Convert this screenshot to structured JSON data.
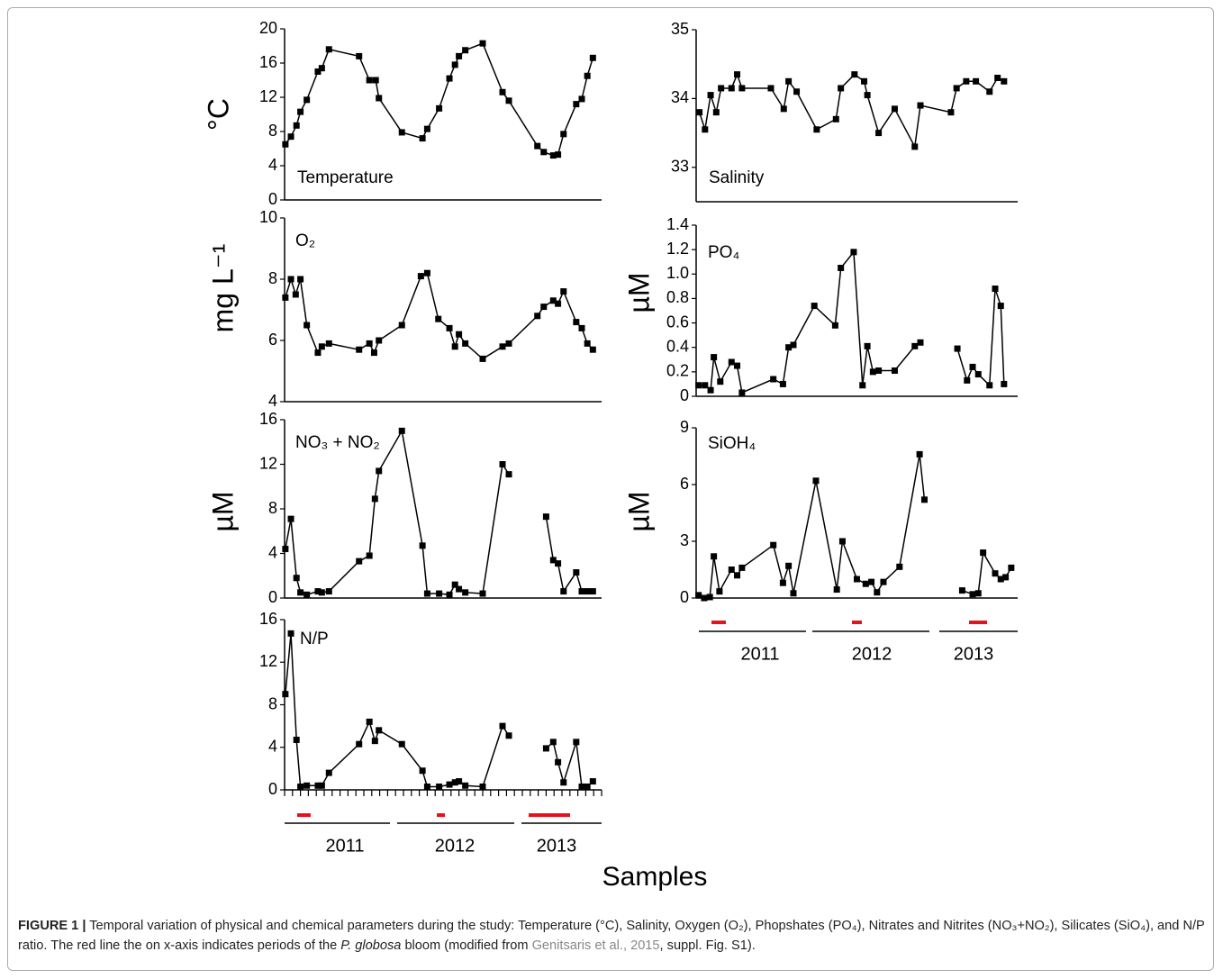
{
  "chart_data": [
    {
      "type": "line",
      "label": "Temperature",
      "ylabel": "°C",
      "color": "#000000",
      "x": [
        0.1,
        0.8,
        1.5,
        2.0,
        2.8,
        4.2,
        4.7,
        5.6,
        9.4,
        10.7,
        11.5,
        11.9,
        14.8,
        17.4,
        18.0,
        19.5,
        20.8,
        21.5,
        22.0,
        22.8,
        25.0,
        27.5,
        28.3,
        31.9,
        32.7,
        33.9,
        34.5,
        35.2,
        36.8,
        37.5,
        38.2,
        38.9
      ],
      "values": [
        6.5,
        7.4,
        8.7,
        10.3,
        11.7,
        15.0,
        15.4,
        17.6,
        16.8,
        14.0,
        14.0,
        11.9,
        7.9,
        7.2,
        8.3,
        10.7,
        14.2,
        15.8,
        16.8,
        17.5,
        18.3,
        12.6,
        11.6,
        6.3,
        5.6,
        5.2,
        5.3,
        7.7,
        11.2,
        11.8,
        14.5,
        16.6
      ],
      "xlim": [
        0,
        40
      ],
      "ylim": [
        0,
        20
      ],
      "yticks": [
        0,
        4,
        8,
        12,
        16,
        20
      ]
    },
    {
      "type": "line",
      "label": "Salinity",
      "color": "#000000",
      "x": [
        0.4,
        1.1,
        1.8,
        2.5,
        3.1,
        4.4,
        5.1,
        5.7,
        9.3,
        10.9,
        11.5,
        12.5,
        15.0,
        17.4,
        18.0,
        19.7,
        20.9,
        21.3,
        22.7,
        24.7,
        27.2,
        27.9,
        31.7,
        32.4,
        33.6,
        34.8,
        36.5,
        37.5,
        38.3
      ],
      "values": [
        33.8,
        33.55,
        34.05,
        33.8,
        34.15,
        34.15,
        34.35,
        34.15,
        34.15,
        33.85,
        34.25,
        34.1,
        33.55,
        33.7,
        34.15,
        34.35,
        34.25,
        34.05,
        33.5,
        33.85,
        33.3,
        33.9,
        33.8,
        34.15,
        34.25,
        34.25,
        34.1,
        34.3,
        34.25
      ],
      "xlim": [
        0,
        40
      ],
      "ylim": [
        32.5,
        35
      ],
      "yticks": [
        33,
        34,
        35
      ]
    },
    {
      "type": "line",
      "label": "O₂",
      "ylabel": "mg L⁻¹",
      "color": "#000000",
      "x": [
        0.1,
        0.8,
        1.4,
        2.0,
        2.8,
        4.2,
        4.7,
        5.6,
        9.4,
        10.7,
        11.3,
        11.9,
        14.8,
        17.2,
        18.0,
        19.4,
        20.8,
        21.5,
        22.0,
        22.8,
        25.0,
        27.5,
        28.3,
        31.9,
        32.7,
        33.9,
        34.5,
        35.2,
        36.8,
        37.5,
        38.2,
        38.9
      ],
      "values": [
        7.4,
        8.0,
        7.5,
        8.0,
        6.5,
        5.6,
        5.8,
        5.9,
        5.7,
        5.9,
        5.6,
        6.0,
        6.5,
        8.1,
        8.2,
        6.7,
        6.4,
        5.8,
        6.2,
        5.9,
        5.4,
        5.8,
        5.9,
        6.8,
        7.1,
        7.3,
        7.2,
        7.6,
        6.6,
        6.4,
        5.9,
        5.7
      ],
      "xlim": [
        0,
        40
      ],
      "ylim": [
        4,
        10
      ],
      "yticks": [
        4,
        6,
        8,
        10
      ]
    },
    {
      "type": "line",
      "label": "PO₄",
      "ylabel": "µM",
      "color": "#000000",
      "x": [
        0.3,
        1.1,
        1.8,
        2.2,
        3.0,
        4.4,
        5.1,
        5.7,
        9.6,
        10.8,
        11.5,
        12.1,
        14.7,
        17.3,
        18.0,
        19.6,
        20.7,
        21.3,
        22.0,
        22.7,
        24.7,
        27.2,
        27.9,
        29.9,
        32.5,
        33.7,
        34.4,
        35.1,
        36.5,
        37.2,
        37.9,
        38.3
      ],
      "values": [
        0.09,
        0.09,
        0.05,
        0.32,
        0.12,
        0.28,
        0.25,
        0.03,
        0.14,
        0.1,
        0.4,
        0.42,
        0.74,
        0.58,
        1.05,
        1.18,
        0.09,
        0.41,
        0.2,
        0.21,
        0.21,
        0.41,
        0.44,
        null,
        0.39,
        0.13,
        0.24,
        0.18,
        0.09,
        0.88,
        0.74,
        0.1
      ],
      "xlim": [
        0,
        40
      ],
      "ylim": [
        0,
        1.4
      ],
      "yticks": [
        0,
        0.2,
        0.4,
        0.6,
        0.8,
        {
          "value": 1,
          "label": "1.0"
        },
        1.2,
        1.4
      ]
    },
    {
      "type": "line",
      "label": "NO₃ + NO₂",
      "ylabel": "µM",
      "color": "#000000",
      "x": [
        0.1,
        0.8,
        1.5,
        2.0,
        2.8,
        4.2,
        4.7,
        5.6,
        9.4,
        10.7,
        11.4,
        11.9,
        14.8,
        17.4,
        18.0,
        19.5,
        20.8,
        21.5,
        22.0,
        22.8,
        25.0,
        27.5,
        28.3,
        30.6,
        33.0,
        33.9,
        34.5,
        35.2,
        36.8,
        37.5,
        38.2,
        38.9
      ],
      "values": [
        4.4,
        7.1,
        1.8,
        0.5,
        0.3,
        0.6,
        0.5,
        0.6,
        3.3,
        3.8,
        8.9,
        11.4,
        15.0,
        4.7,
        0.4,
        0.4,
        0.3,
        1.2,
        0.8,
        0.5,
        0.4,
        12.0,
        11.1,
        null,
        7.3,
        3.4,
        3.1,
        0.6,
        2.3,
        0.6,
        0.6,
        0.6
      ],
      "xlim": [
        0,
        40
      ],
      "ylim": [
        0,
        16
      ],
      "yticks": [
        0,
        4,
        8,
        12,
        16
      ]
    },
    {
      "type": "line",
      "label": "SiOH₄",
      "ylabel": "µM",
      "color": "#000000",
      "x": [
        0.3,
        1.0,
        1.7,
        2.2,
        2.9,
        4.4,
        5.1,
        5.7,
        9.6,
        10.8,
        11.5,
        12.1,
        14.9,
        17.5,
        18.2,
        20.0,
        21.1,
        21.8,
        22.5,
        23.3,
        25.3,
        27.8,
        28.4,
        31.0,
        33.1,
        34.4,
        35.1,
        35.7,
        37.2,
        37.9,
        38.5,
        39.2
      ],
      "values": [
        0.15,
        0,
        0.05,
        2.2,
        0.35,
        1.5,
        1.2,
        1.6,
        2.8,
        0.8,
        1.7,
        0.25,
        6.2,
        0.45,
        3.0,
        1.0,
        0.75,
        0.85,
        0.3,
        0.85,
        1.65,
        7.6,
        5.2,
        null,
        0.4,
        0.2,
        0.25,
        2.4,
        1.3,
        1.0,
        1.1,
        1.6
      ],
      "xlim": [
        0,
        40
      ],
      "ylim": [
        0,
        9
      ],
      "yticks": [
        0,
        3,
        6,
        9
      ]
    },
    {
      "type": "line",
      "label": "N/P",
      "color": "#000000",
      "x": [
        0.1,
        0.8,
        1.5,
        2.0,
        2.8,
        4.2,
        4.7,
        5.6,
        9.4,
        10.7,
        11.4,
        11.9,
        14.8,
        17.4,
        18.0,
        19.5,
        20.8,
        21.5,
        22.0,
        22.8,
        25.0,
        27.5,
        28.3,
        30.6,
        33.0,
        33.9,
        34.5,
        35.2,
        36.8,
        37.5,
        38.2,
        38.9
      ],
      "values": [
        9.0,
        14.7,
        4.7,
        0.3,
        0.4,
        0.4,
        0.4,
        1.6,
        4.3,
        6.4,
        4.6,
        5.6,
        4.3,
        1.8,
        0.3,
        0.3,
        0.5,
        0.7,
        0.8,
        0.4,
        0.3,
        6.0,
        5.1,
        null,
        3.9,
        4.5,
        2.6,
        0.7,
        4.5,
        0.3,
        0.3,
        0.8
      ],
      "xlim": [
        0,
        40
      ],
      "ylim": [
        0,
        16
      ],
      "yticks": [
        0,
        4,
        8,
        12,
        16
      ],
      "xticks": [
        0,
        1,
        2,
        3,
        4,
        5,
        6,
        7,
        8,
        9,
        10,
        11,
        12,
        13,
        14,
        15,
        16,
        17,
        18,
        19,
        20,
        21,
        22,
        23,
        24,
        25,
        26,
        27,
        28,
        29,
        30,
        31,
        32,
        33,
        34,
        35,
        36,
        37,
        38,
        39,
        40
      ]
    }
  ],
  "xlabel": "Samples",
  "years": [
    "2011",
    "2012",
    "2013"
  ],
  "caption": {
    "label": "FIGURE 1 |",
    "text1": "Temporal variation of physical and chemical parameters during the study: Temperature (°C), Salinity, Oxygen (O₂), Phopshates (PO₄), Nitrates and Nitrites (NO₃+NO₂), Silicates (SiO₄), and N/P ratio. The red line the on x-axis indicates periods of the ",
    "species": "P. globosa",
    "text2": " bloom (modified from ",
    "ref": "Genitsaris et al., 2015",
    "text3": ", suppl. Fig. S1)."
  }
}
